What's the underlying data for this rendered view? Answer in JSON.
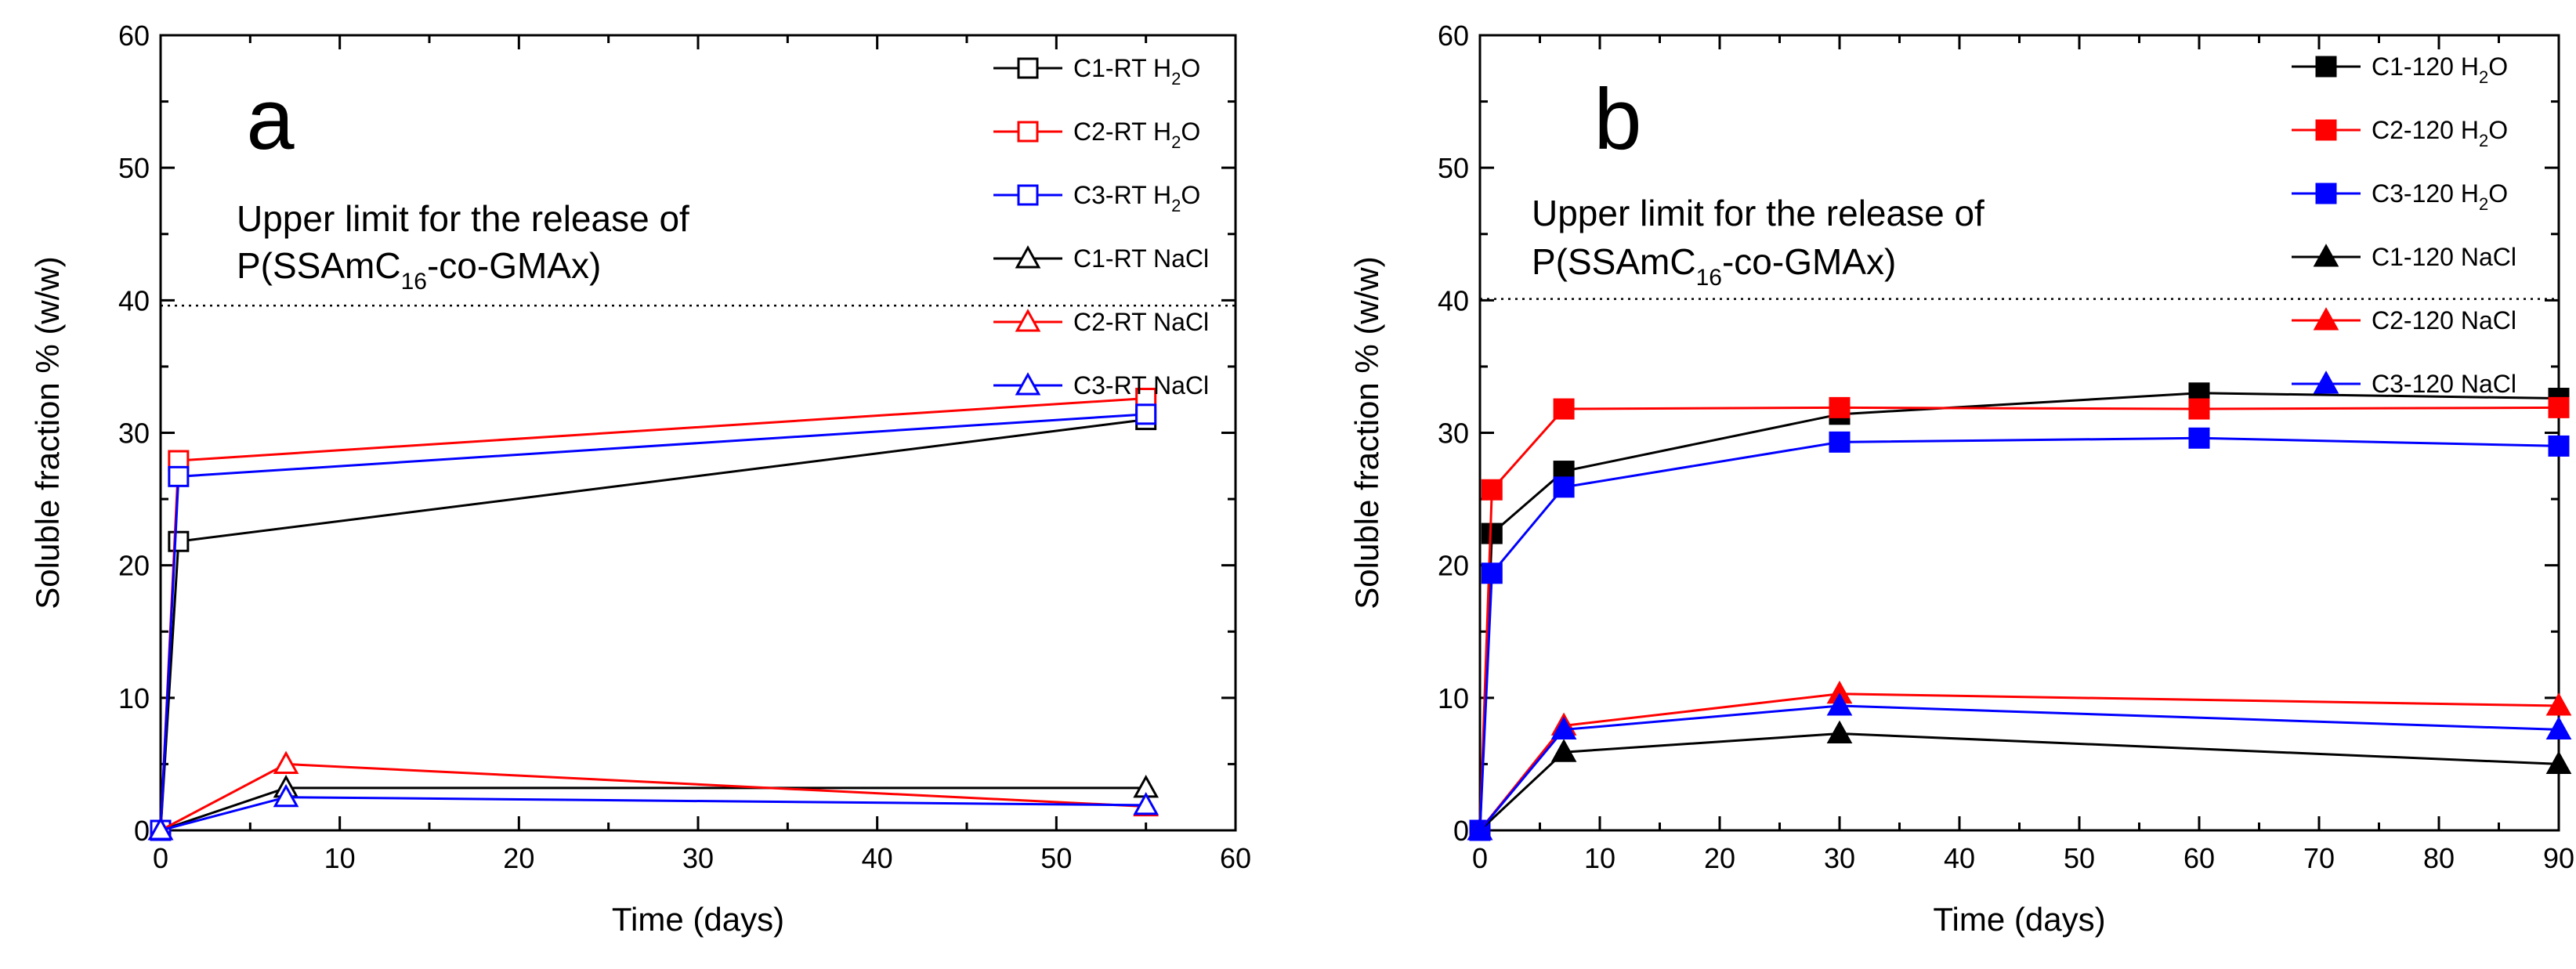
{
  "chart_data": [
    {
      "type": "line",
      "panel_label": "a",
      "xlabel": "Time (days)",
      "ylabel": "Soluble fraction % (w/w)",
      "xlim": [
        0,
        60
      ],
      "ylim": [
        0,
        60
      ],
      "xticks": [
        0,
        10,
        20,
        30,
        40,
        50,
        60
      ],
      "yticks": [
        0,
        10,
        20,
        30,
        40,
        50,
        60
      ],
      "reference_line": {
        "y": 39.6,
        "style": "dotted"
      },
      "annotation": {
        "line1": "Upper limit for the release of",
        "line2_prefix": "P(SSAmC",
        "line2_sub": "16",
        "line2_suffix": "-co-GMAx)"
      },
      "legend_position": "top-right",
      "series": [
        {
          "name": "C1-RT H2O",
          "label": "C1-RT H",
          "label_sub": "2",
          "label_suffix": "O",
          "color": "#000000",
          "marker": "square",
          "filled": false,
          "x": [
            0,
            1,
            55
          ],
          "y": [
            0,
            21.8,
            31.0
          ]
        },
        {
          "name": "C2-RT H2O",
          "label": "C2-RT H",
          "label_sub": "2",
          "label_suffix": "O",
          "color": "#ff0000",
          "marker": "square",
          "filled": false,
          "x": [
            0,
            1,
            55
          ],
          "y": [
            0,
            27.9,
            32.6
          ]
        },
        {
          "name": "C3-RT H2O",
          "label": "C3-RT H",
          "label_sub": "2",
          "label_suffix": "O",
          "color": "#0000ff",
          "marker": "square",
          "filled": false,
          "x": [
            0,
            1,
            55
          ],
          "y": [
            0,
            26.7,
            31.4
          ]
        },
        {
          "name": "C1-RT NaCl",
          "label": "C1-RT NaCl",
          "label_sub": "",
          "label_suffix": "",
          "color": "#000000",
          "marker": "triangle",
          "filled": false,
          "x": [
            0,
            7,
            55
          ],
          "y": [
            0,
            3.2,
            3.2
          ]
        },
        {
          "name": "C2-RT NaCl",
          "label": "C2-RT NaCl",
          "label_sub": "",
          "label_suffix": "",
          "color": "#ff0000",
          "marker": "triangle",
          "filled": false,
          "x": [
            0,
            7,
            55
          ],
          "y": [
            0,
            5.0,
            1.8
          ]
        },
        {
          "name": "C3-RT NaCl",
          "label": "C3-RT NaCl",
          "label_sub": "",
          "label_suffix": "",
          "color": "#0000ff",
          "marker": "triangle",
          "filled": false,
          "x": [
            0,
            7,
            55
          ],
          "y": [
            0,
            2.5,
            1.9
          ]
        }
      ]
    },
    {
      "type": "line",
      "panel_label": "b",
      "xlabel": "Time (days)",
      "ylabel": "Soluble fraction % (w/w)",
      "xlim": [
        0,
        90
      ],
      "ylim": [
        0,
        60
      ],
      "xticks": [
        0,
        10,
        20,
        30,
        40,
        50,
        60,
        70,
        80,
        90
      ],
      "yticks": [
        0,
        10,
        20,
        30,
        40,
        50,
        60
      ],
      "reference_line": {
        "y": 40.1,
        "style": "dotted"
      },
      "annotation": {
        "line1": "Upper limit for the release of",
        "line2_prefix": "P(SSAmC",
        "line2_sub": "16",
        "line2_suffix": "-co-GMAx)"
      },
      "legend_position": "top-right",
      "series": [
        {
          "name": "C1-120 H2O",
          "label": "C1-120 H",
          "label_sub": "2",
          "label_suffix": "O",
          "color": "#000000",
          "marker": "square",
          "filled": true,
          "x": [
            0,
            1,
            7,
            30,
            60,
            90
          ],
          "y": [
            0,
            22.4,
            27.1,
            31.4,
            33.0,
            32.6
          ]
        },
        {
          "name": "C2-120 H2O",
          "label": "C2-120 H",
          "label_sub": "2",
          "label_suffix": "O",
          "color": "#ff0000",
          "marker": "square",
          "filled": true,
          "x": [
            0,
            1,
            7,
            30,
            60,
            90
          ],
          "y": [
            0,
            25.7,
            31.8,
            31.9,
            31.8,
            31.9
          ]
        },
        {
          "name": "C3-120 H2O",
          "label": "C3-120 H",
          "label_sub": "2",
          "label_suffix": "O",
          "color": "#0000ff",
          "marker": "square",
          "filled": true,
          "x": [
            0,
            1,
            7,
            30,
            60,
            90
          ],
          "y": [
            0,
            19.4,
            25.9,
            29.3,
            29.6,
            29.0
          ]
        },
        {
          "name": "C1-120 NaCl",
          "label": "C1-120 NaCl",
          "label_sub": "",
          "label_suffix": "",
          "color": "#000000",
          "marker": "triangle",
          "filled": true,
          "x": [
            0,
            7,
            30,
            90
          ],
          "y": [
            0,
            5.9,
            7.3,
            5.0
          ]
        },
        {
          "name": "C2-120 NaCl",
          "label": "C2-120 NaCl",
          "label_sub": "",
          "label_suffix": "",
          "color": "#ff0000",
          "marker": "triangle",
          "filled": true,
          "x": [
            0,
            7,
            30,
            90
          ],
          "y": [
            0,
            7.9,
            10.3,
            9.4
          ]
        },
        {
          "name": "C3-120 NaCl",
          "label": "C3-120 NaCl",
          "label_sub": "",
          "label_suffix": "",
          "color": "#0000ff",
          "marker": "triangle",
          "filled": true,
          "x": [
            0,
            7,
            30,
            90
          ],
          "y": [
            0,
            7.6,
            9.4,
            7.6
          ]
        }
      ]
    }
  ]
}
